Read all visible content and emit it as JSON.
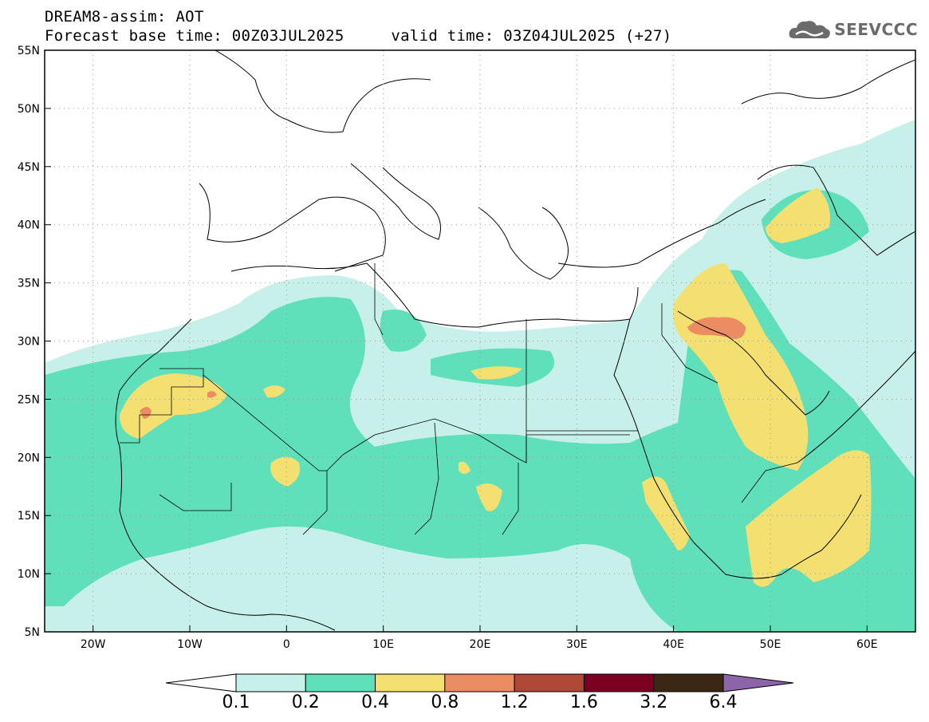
{
  "header": {
    "title": "DREAM8-assim: AOT",
    "subtitle_base": "Forecast base time: 00Z03JUL2025",
    "subtitle_valid": "valid time: 03Z04JUL2025 (+27)"
  },
  "logo": {
    "text": "SEEVCCC",
    "icon": "cloud-logo-icon"
  },
  "map": {
    "lon_range": [
      -25,
      65
    ],
    "lat_range": [
      5,
      55
    ],
    "x_ticks": [
      "20W",
      "10W",
      "0",
      "10E",
      "20E",
      "30E",
      "40E",
      "50E",
      "60E"
    ],
    "y_ticks": [
      "55N",
      "50N",
      "45N",
      "40N",
      "35N",
      "30N",
      "25N",
      "20N",
      "15N",
      "10N",
      "5N"
    ],
    "gridlines": true
  },
  "colorbar": {
    "labels": [
      "0.1",
      "0.2",
      "0.4",
      "0.8",
      "1.2",
      "1.6",
      "3.2",
      "6.4"
    ],
    "colors": [
      "#ffffff",
      "#c7f0ea",
      "#5fe0bb",
      "#f4e070",
      "#ec8c62",
      "#b04838",
      "#7a0022",
      "#3a2814",
      "#8c64a8"
    ]
  }
}
